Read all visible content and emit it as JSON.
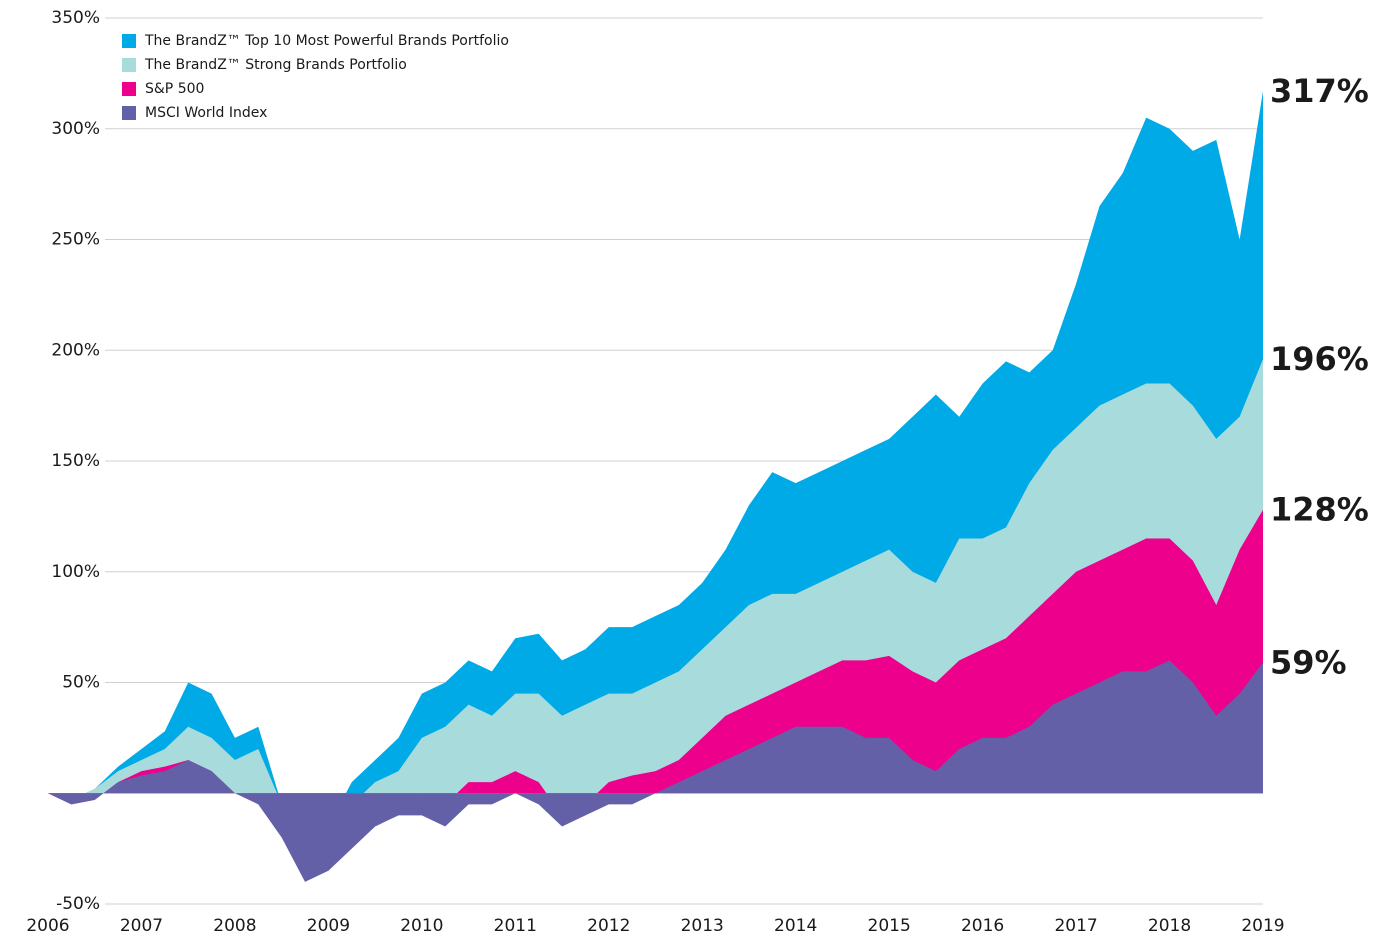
{
  "chart_data": {
    "type": "area",
    "x": [
      2006,
      2006.25,
      2006.5,
      2006.75,
      2007,
      2007.25,
      2007.5,
      2007.75,
      2008,
      2008.25,
      2008.5,
      2008.75,
      2009,
      2009.25,
      2009.5,
      2009.75,
      2010,
      2010.25,
      2010.5,
      2010.75,
      2011,
      2011.25,
      2011.5,
      2011.75,
      2012,
      2012.25,
      2012.5,
      2012.75,
      2013,
      2013.25,
      2013.5,
      2013.75,
      2014,
      2014.25,
      2014.5,
      2014.75,
      2015,
      2015.25,
      2015.5,
      2015.75,
      2016,
      2016.25,
      2016.5,
      2016.75,
      2017,
      2017.25,
      2017.5,
      2017.75,
      2018,
      2018.25,
      2018.5,
      2018.75,
      2019
    ],
    "series": [
      {
        "name": "The BrandZ™ Top 10 Most Powerful Brands Portfolio",
        "color": "#00aae6",
        "values": [
          0,
          -3,
          2,
          12,
          20,
          28,
          50,
          45,
          25,
          30,
          -5,
          -20,
          -15,
          5,
          15,
          25,
          45,
          50,
          60,
          55,
          70,
          72,
          60,
          65,
          75,
          75,
          80,
          85,
          95,
          110,
          130,
          145,
          140,
          145,
          150,
          155,
          160,
          170,
          180,
          170,
          185,
          195,
          190,
          200,
          230,
          265,
          280,
          305,
          300,
          290,
          295,
          250,
          317
        ],
        "value_labels": [
          null,
          null,
          null,
          null,
          null,
          null,
          null,
          null,
          null,
          null,
          null,
          null,
          null,
          null,
          null,
          null,
          null,
          null,
          null,
          null,
          null,
          null,
          null,
          null,
          null,
          null,
          null,
          null,
          null,
          null,
          null,
          null,
          null,
          null,
          null,
          null,
          null,
          null,
          null,
          null,
          null,
          null,
          null,
          null,
          null,
          null,
          null,
          null,
          null,
          null,
          null,
          null,
          "317%"
        ]
      },
      {
        "name": "The BrandZ™ Strong Brands Portfolio",
        "color": "#a8dcdc",
        "values": [
          0,
          -3,
          2,
          10,
          15,
          20,
          30,
          25,
          15,
          20,
          -5,
          -25,
          -20,
          -5,
          5,
          10,
          25,
          30,
          40,
          35,
          45,
          45,
          35,
          40,
          45,
          45,
          50,
          55,
          65,
          75,
          85,
          90,
          90,
          95,
          100,
          105,
          110,
          100,
          95,
          115,
          115,
          120,
          140,
          155,
          165,
          175,
          180,
          185,
          185,
          175,
          160,
          170,
          196
        ],
        "value_labels": [
          null,
          null,
          null,
          null,
          null,
          null,
          null,
          null,
          null,
          null,
          null,
          null,
          null,
          null,
          null,
          null,
          null,
          null,
          null,
          null,
          null,
          null,
          null,
          null,
          null,
          null,
          null,
          null,
          null,
          null,
          null,
          null,
          null,
          null,
          null,
          null,
          null,
          null,
          null,
          null,
          null,
          null,
          null,
          null,
          null,
          null,
          null,
          null,
          null,
          null,
          null,
          null,
          "196%"
        ]
      },
      {
        "name": "S&P 500",
        "color": "#ec008c",
        "values": [
          0,
          -5,
          -3,
          5,
          10,
          12,
          15,
          10,
          0,
          -2,
          -15,
          -35,
          -35,
          -20,
          -10,
          -5,
          0,
          -5,
          5,
          5,
          10,
          5,
          -10,
          -5,
          5,
          8,
          10,
          15,
          25,
          35,
          40,
          45,
          50,
          55,
          60,
          60,
          62,
          55,
          50,
          60,
          65,
          70,
          80,
          90,
          100,
          105,
          110,
          115,
          115,
          105,
          85,
          110,
          128
        ],
        "value_labels": [
          null,
          null,
          null,
          null,
          null,
          null,
          null,
          null,
          null,
          null,
          null,
          null,
          null,
          null,
          null,
          null,
          null,
          null,
          null,
          null,
          null,
          null,
          null,
          null,
          null,
          null,
          null,
          null,
          null,
          null,
          null,
          null,
          null,
          null,
          null,
          null,
          null,
          null,
          null,
          null,
          null,
          null,
          null,
          null,
          null,
          null,
          null,
          null,
          null,
          null,
          null,
          null,
          "128%"
        ]
      },
      {
        "name": "MSCI World Index",
        "color": "#6460a8",
        "values": [
          0,
          -5,
          -3,
          5,
          8,
          10,
          15,
          10,
          0,
          -5,
          -20,
          -40,
          -35,
          -25,
          -15,
          -10,
          -10,
          -15,
          -5,
          -5,
          0,
          -5,
          -15,
          -10,
          -5,
          -5,
          0,
          5,
          10,
          15,
          20,
          25,
          30,
          30,
          30,
          25,
          25,
          15,
          10,
          20,
          25,
          25,
          30,
          40,
          45,
          50,
          55,
          55,
          60,
          50,
          35,
          45,
          59
        ],
        "value_labels": [
          null,
          null,
          null,
          null,
          null,
          null,
          null,
          null,
          null,
          null,
          null,
          null,
          null,
          null,
          null,
          null,
          null,
          null,
          null,
          null,
          null,
          null,
          null,
          null,
          null,
          null,
          null,
          null,
          null,
          null,
          null,
          null,
          null,
          null,
          null,
          null,
          null,
          null,
          null,
          null,
          null,
          null,
          null,
          null,
          null,
          null,
          null,
          null,
          null,
          null,
          null,
          null,
          "59%"
        ]
      }
    ],
    "xlim": [
      2006,
      2019
    ],
    "xticks": [
      2006,
      2007,
      2008,
      2009,
      2010,
      2011,
      2012,
      2013,
      2014,
      2015,
      2016,
      2017,
      2018,
      2019
    ],
    "ylim": [
      -50,
      350
    ],
    "yticks": [
      {
        "value": -50,
        "label": "-50%"
      },
      {
        "value": 50,
        "label": "50%"
      },
      {
        "value": 100,
        "label": "100%"
      },
      {
        "value": 150,
        "label": "150%"
      },
      {
        "value": 200,
        "label": "200%"
      },
      {
        "value": 250,
        "label": "250%"
      },
      {
        "value": 300,
        "label": "300%"
      },
      {
        "value": 350,
        "label": "350%"
      }
    ],
    "grid": true,
    "legend": "top-left"
  }
}
